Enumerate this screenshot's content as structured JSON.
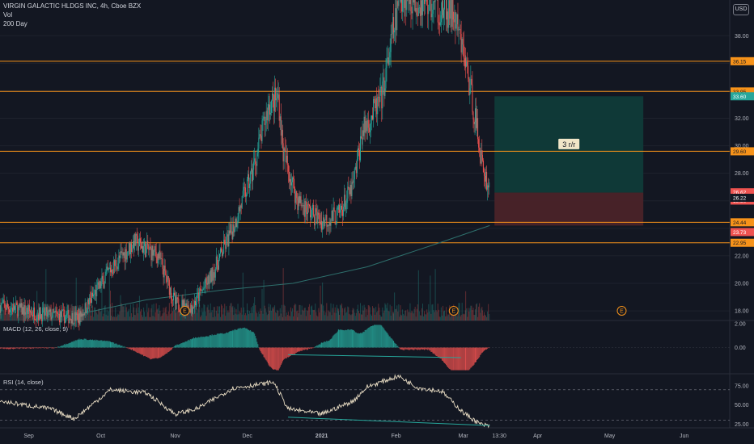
{
  "header": {
    "title": "VIRGIN GALACTIC HLDGS INC, 4h, Cboe BZX",
    "indicator_vol": "Vol",
    "indicator_ma": "200 Day",
    "currency": "USD"
  },
  "colors": {
    "background": "#131722",
    "up": "#26a69a",
    "down": "#ef5350",
    "level_line": "#f7931a",
    "ma_line": "#2e6f6c",
    "profit_zone": "#0f3b39",
    "loss_zone": "#4a2329",
    "rsi_line": "#e8dcc3",
    "grid": "#1e222d"
  },
  "chart_data": [
    {
      "type": "candlestick",
      "title": "VIRGIN GALACTIC HLDGS INC, 4h, Cboe BZX",
      "x_ticks": [
        "Sep",
        "Oct",
        "Nov",
        "Dec",
        "2021",
        "Feb",
        "Mar",
        "13:30",
        "Apr",
        "May",
        "Jun"
      ],
      "y_ticks": [
        18.0,
        20.0,
        22.0,
        24.0,
        26.0,
        28.0,
        30.0,
        32.0,
        34.0,
        36.0,
        38.0
      ],
      "y_ticks_labels": [
        "18.00",
        "20.00",
        "22.00",
        "28.00",
        "30.00",
        "32.00",
        "38.00"
      ],
      "ylim": [
        17.3,
        40.6
      ],
      "series": [
        {
          "name": "VIRGIN GALACTIC HLDGS INC",
          "anchors": [
            {
              "x": "2020-08-20",
              "y": 18.4
            },
            {
              "x": "2020-09-05",
              "y": 17.8
            },
            {
              "x": "2020-09-22",
              "y": 17.5
            },
            {
              "x": "2020-10-05",
              "y": 21.0
            },
            {
              "x": "2020-10-15",
              "y": 23.0
            },
            {
              "x": "2020-10-25",
              "y": 22.0
            },
            {
              "x": "2020-11-01",
              "y": 18.5
            },
            {
              "x": "2020-11-08",
              "y": 18.3
            },
            {
              "x": "2020-11-16",
              "y": 20.5
            },
            {
              "x": "2020-11-25",
              "y": 24.0
            },
            {
              "x": "2020-12-03",
              "y": 28.0
            },
            {
              "x": "2020-12-10",
              "y": 33.0
            },
            {
              "x": "2020-12-14",
              "y": 33.5
            },
            {
              "x": "2020-12-16",
              "y": 29.5
            },
            {
              "x": "2020-12-22",
              "y": 26.0
            },
            {
              "x": "2021-01-01",
              "y": 24.5
            },
            {
              "x": "2021-01-08",
              "y": 25.0
            },
            {
              "x": "2021-01-14",
              "y": 27.0
            },
            {
              "x": "2021-01-18",
              "y": 31.0
            },
            {
              "x": "2021-01-26",
              "y": 33.5
            },
            {
              "x": "2021-01-31",
              "y": 38.5
            },
            {
              "x": "2021-02-03",
              "y": 41.0
            },
            {
              "x": "2021-02-25",
              "y": 39.5
            },
            {
              "x": "2021-03-02",
              "y": 36.0
            },
            {
              "x": "2021-03-06",
              "y": 32.0
            },
            {
              "x": "2021-03-09",
              "y": 28.5
            },
            {
              "x": "2021-03-12",
              "y": 26.8
            }
          ]
        }
      ],
      "levels": [
        36.15,
        33.95,
        29.6,
        24.44,
        22.95
      ],
      "level_labels": [
        "36.15",
        "33.95",
        "29.60",
        "24.44",
        "22.95"
      ],
      "price_badges": [
        {
          "value": 33.6,
          "label": "33.60",
          "color": "#26a69a"
        },
        {
          "value": 26.62,
          "label": "26.62",
          "color": "#ef5350"
        },
        {
          "value": 26.02,
          "label": "19:50",
          "color": "#ef5350"
        },
        {
          "value": 26.22,
          "label": "26.22",
          "color": "#131722"
        },
        {
          "value": 23.73,
          "label": "23.73",
          "color": "#ef5350"
        }
      ],
      "moving_average_200": [
        {
          "x": "2020-09-20",
          "y": 17.7
        },
        {
          "x": "2020-10-20",
          "y": 18.8
        },
        {
          "x": "2020-11-20",
          "y": 19.5
        },
        {
          "x": "2020-12-20",
          "y": 20.0
        },
        {
          "x": "2021-01-20",
          "y": 21.2
        },
        {
          "x": "2021-02-20",
          "y": 23.0
        },
        {
          "x": "2021-03-12",
          "y": 24.2
        }
      ],
      "risk_reward": {
        "label": "3 r/r",
        "entry": 26.6,
        "target": 33.6,
        "stop": 24.2,
        "x_start": "2021-03-14",
        "x_end": "2021-05-15"
      },
      "earnings_markers": [
        {
          "x": "2020-11-05",
          "label": "E"
        },
        {
          "x": "2021-02-25",
          "label": "E"
        },
        {
          "x": "2021-05-06",
          "label": "E"
        }
      ]
    },
    {
      "type": "bar",
      "title": "MACD (12, 26, close, 9)",
      "y_ticks": [
        "2.00",
        "0.00"
      ],
      "ylim": [
        -2.0,
        2.0
      ]
    },
    {
      "type": "line",
      "title": "RSI (14, close)",
      "y_ticks": [
        "75.00",
        "50.00",
        "25.00"
      ],
      "ylim": [
        20,
        90
      ],
      "bands": [
        70,
        30
      ],
      "series": [
        {
          "anchors": [
            {
              "x": "2020-08-20",
              "y": 55
            },
            {
              "x": "2020-09-10",
              "y": 45
            },
            {
              "x": "2020-09-20",
              "y": 32
            },
            {
              "x": "2020-10-05",
              "y": 70
            },
            {
              "x": "2020-10-20",
              "y": 66
            },
            {
              "x": "2020-11-01",
              "y": 38
            },
            {
              "x": "2020-11-10",
              "y": 45
            },
            {
              "x": "2020-11-25",
              "y": 72
            },
            {
              "x": "2020-12-12",
              "y": 80
            },
            {
              "x": "2020-12-18",
              "y": 45
            },
            {
              "x": "2021-01-01",
              "y": 38
            },
            {
              "x": "2021-01-14",
              "y": 55
            },
            {
              "x": "2021-01-20",
              "y": 74
            },
            {
              "x": "2021-02-02",
              "y": 88
            },
            {
              "x": "2021-02-10",
              "y": 73
            },
            {
              "x": "2021-02-20",
              "y": 68
            },
            {
              "x": "2021-03-01",
              "y": 40
            },
            {
              "x": "2021-03-08",
              "y": 25
            },
            {
              "x": "2021-03-12",
              "y": 22
            }
          ]
        }
      ]
    }
  ]
}
